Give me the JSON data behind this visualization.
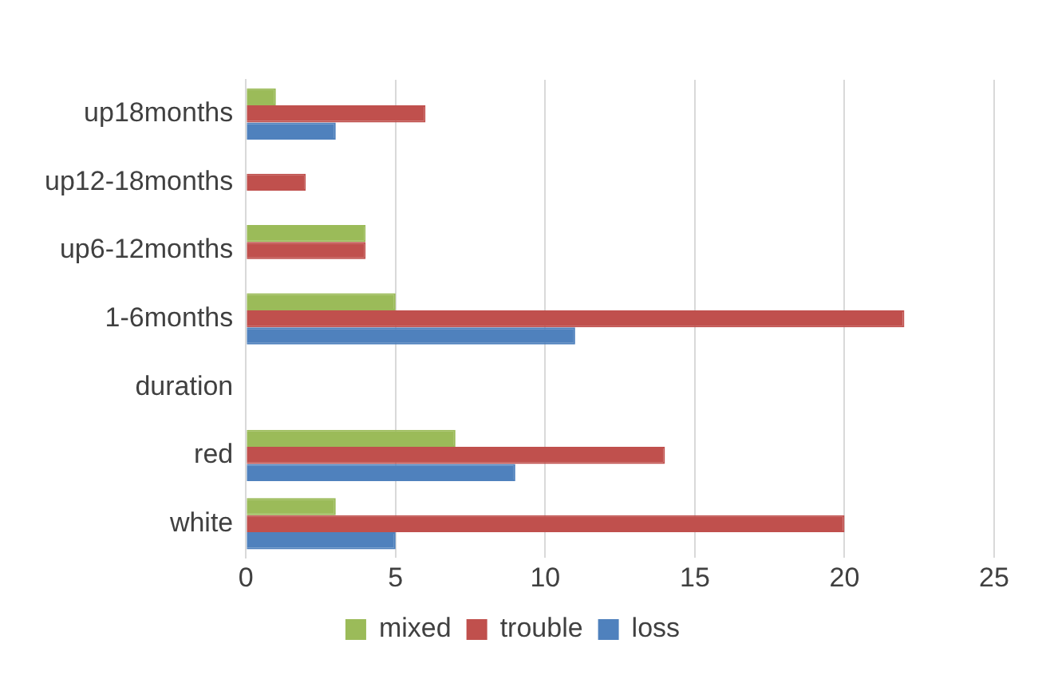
{
  "chart_data": {
    "type": "bar",
    "orientation": "horizontal",
    "categories": [
      "up18months",
      "up12-18months",
      "up6-12months",
      "1-6months",
      "duration",
      "red",
      "white"
    ],
    "series": [
      {
        "name": "mixed",
        "color": "#9bbb59",
        "values": [
          1,
          0,
          4,
          5,
          null,
          7,
          3
        ]
      },
      {
        "name": "trouble",
        "color": "#c0504d",
        "values": [
          6,
          2,
          4,
          22,
          null,
          14,
          20
        ]
      },
      {
        "name": "loss",
        "color": "#4f81bd",
        "values": [
          3,
          0,
          0,
          11,
          null,
          9,
          5
        ]
      }
    ],
    "xlim": [
      0,
      25
    ],
    "xticks": [
      0,
      5,
      10,
      15,
      20,
      25
    ],
    "grid": "x",
    "legend": "bottom"
  }
}
